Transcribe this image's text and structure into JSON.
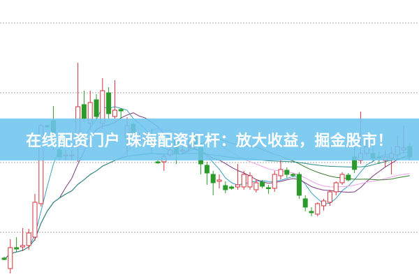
{
  "banner": {
    "title": "在线配资门户 珠海配资杠杆：放大收益，掘金股市！"
  },
  "chart_data": {
    "type": "candlestick",
    "title": "",
    "xlabel": "",
    "ylabel": "",
    "ylim": [
      0,
      40
    ],
    "grid": true,
    "grid_values": [
      36.7,
      26.7,
      16.7,
      6.7
    ],
    "colors": {
      "up": "#d2323c",
      "down": "#2a9a2a",
      "grid": "#aaaaaa",
      "banner": "#6ec4ee"
    },
    "moving_averages": [
      {
        "window": 5,
        "color": "#3a9fc6"
      },
      {
        "window": 10,
        "color": "#7a3a7a"
      },
      {
        "window": 20,
        "color": "#ee9ee8"
      },
      {
        "window": 30,
        "color": "#3c7a32"
      },
      {
        "window": 60,
        "color": "#2a8a8a"
      }
    ],
    "candles": [
      [
        3.0,
        2.8,
        3.2,
        2.7
      ],
      [
        1.5,
        4.5,
        5.7,
        0.8
      ],
      [
        4.5,
        4.3,
        6.0,
        3.8
      ],
      [
        4.6,
        4.8,
        7.3,
        4.0
      ],
      [
        4.8,
        6.6,
        7.2,
        4.2
      ],
      [
        6.0,
        11.0,
        12.2,
        5.5
      ],
      [
        10.8,
        22.0,
        22.2,
        10.4
      ],
      [
        22.0,
        21.8,
        22.1,
        21.7
      ],
      [
        22.7,
        20.8,
        24.8,
        18.5
      ],
      [
        18.5,
        17.5,
        19.5,
        17.0
      ],
      [
        17.8,
        17.8,
        18.5,
        17.0
      ],
      [
        17.8,
        17.8,
        18.5,
        17.0
      ],
      [
        19.0,
        24.7,
        31.0,
        16.8
      ],
      [
        25.0,
        23.0,
        27.0,
        22.5
      ],
      [
        22.3,
        25.3,
        27.0,
        21.5
      ],
      [
        25.7,
        23.3,
        26.5,
        23.0
      ],
      [
        22.3,
        27.0,
        28.8,
        21.5
      ],
      [
        26.7,
        23.7,
        27.5,
        23.0
      ],
      [
        23.3,
        24.2,
        28.5,
        23.0
      ],
      [
        24.3,
        24.1,
        24.5,
        23.0
      ],
      [
        20.3,
        22.0,
        23.2,
        17.7
      ],
      [
        22.2,
        21.0,
        22.5,
        20.5
      ],
      [
        20.0,
        20.0,
        21.0,
        19.5
      ],
      [
        20.0,
        20.1,
        21.0,
        19.4
      ],
      [
        20.0,
        19.4,
        21.5,
        18.0
      ],
      [
        16.8,
        16.7,
        17.0,
        16.5
      ],
      [
        16.8,
        17.6,
        18.0,
        15.5
      ],
      [
        17.8,
        18.5,
        19.5,
        17.5
      ],
      [
        19.8,
        18.0,
        20.5,
        16.5
      ],
      [
        18.5,
        18.5,
        19.2,
        17.8
      ],
      [
        19.0,
        19.1,
        20.0,
        18.2
      ],
      [
        20.5,
        19.0,
        21.0,
        18.5
      ],
      [
        18.8,
        16.5,
        19.5,
        15.0
      ],
      [
        16.3,
        15.2,
        16.8,
        13.5
      ],
      [
        15.0,
        13.8,
        15.5,
        12.0
      ],
      [
        14.0,
        14.2,
        15.0,
        13.0
      ],
      [
        13.4,
        12.8,
        14.0,
        12.3
      ],
      [
        13.2,
        13.0,
        13.4,
        12.8
      ],
      [
        13.2,
        13.5,
        16.5,
        12.8
      ],
      [
        13.2,
        15.0,
        15.5,
        12.8
      ],
      [
        13.2,
        14.8,
        15.3,
        12.8
      ],
      [
        12.8,
        13.8,
        14.3,
        12.4
      ],
      [
        13.9,
        13.3,
        14.2,
        13.0
      ],
      [
        13.1,
        13.0,
        13.5,
        12.2
      ],
      [
        13.0,
        15.0,
        15.5,
        12.5
      ],
      [
        14.8,
        15.7,
        17.0,
        14.3
      ],
      [
        15.6,
        15.0,
        16.0,
        14.5
      ],
      [
        15.0,
        14.9,
        15.2,
        14.6
      ],
      [
        15.0,
        12.0,
        15.3,
        11.5
      ],
      [
        11.5,
        10.3,
        12.0,
        9.7
      ],
      [
        9.7,
        9.5,
        10.3,
        9.0
      ],
      [
        9.3,
        10.8,
        11.0,
        9.0
      ],
      [
        10.5,
        11.2,
        11.5,
        9.8
      ],
      [
        11.0,
        12.5,
        12.8,
        10.5
      ],
      [
        12.5,
        13.8,
        14.0,
        12.0
      ],
      [
        13.8,
        15.0,
        15.3,
        13.5
      ],
      [
        14.9,
        14.2,
        15.2,
        14.0
      ],
      [
        17.5,
        15.7,
        19.5,
        15.2
      ],
      [
        17.0,
        18.0,
        24.0,
        16.5
      ],
      [
        18.0,
        19.0,
        20.0,
        17.5
      ],
      [
        18.0,
        17.3,
        19.5,
        16.8
      ],
      [
        17.5,
        17.4,
        18.3,
        16.5
      ],
      [
        17.0,
        17.5,
        18.5,
        16.0
      ],
      [
        17.3,
        18.0,
        19.0,
        15.0
      ],
      [
        17.8,
        19.0,
        20.5,
        17.0
      ],
      [
        18.5,
        18.8,
        22.0,
        18.0
      ],
      [
        19.0,
        17.5,
        19.5,
        17.0
      ]
    ]
  }
}
